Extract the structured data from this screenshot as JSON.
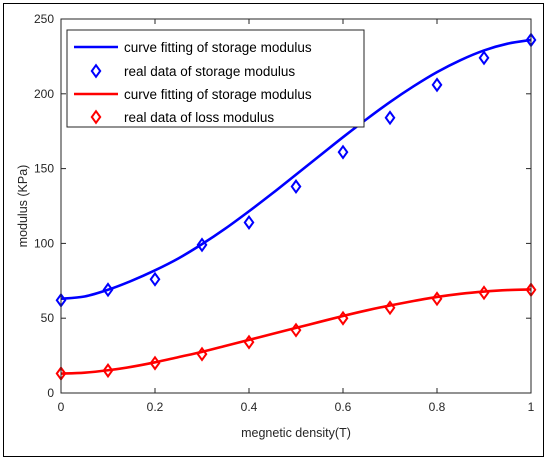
{
  "chart_data": {
    "type": "line",
    "title": "",
    "xlabel": "megnetic density(T)",
    "ylabel": "modulus (KPa)",
    "xlim": [
      0,
      1
    ],
    "ylim": [
      0,
      250
    ],
    "xticks": [
      "0",
      "0.2",
      "0.4",
      "0.6",
      "0.8",
      "1"
    ],
    "yticks": [
      "0",
      "50",
      "100",
      "150",
      "200",
      "250"
    ],
    "grid": false,
    "legend_position": "top-left",
    "series": [
      {
        "name": "curve fitting of storage modulus",
        "kind": "line",
        "color": "#0000ff",
        "x": [
          0,
          0.05,
          0.1,
          0.15,
          0.2,
          0.25,
          0.3,
          0.35,
          0.4,
          0.45,
          0.5,
          0.55,
          0.6,
          0.65,
          0.7,
          0.75,
          0.8,
          0.85,
          0.9,
          0.95,
          1.0
        ],
        "y": [
          63,
          64.5,
          69,
          75,
          82,
          90,
          99.5,
          110,
          121.5,
          133.5,
          146,
          158.5,
          171,
          183,
          194.5,
          205,
          214.5,
          222.5,
          229,
          233.5,
          236
        ]
      },
      {
        "name": "real data of storage modulus",
        "kind": "markers",
        "marker": "diamond",
        "color": "#0000ff",
        "x": [
          0,
          0.1,
          0.2,
          0.3,
          0.4,
          0.5,
          0.6,
          0.7,
          0.8,
          0.9,
          1.0
        ],
        "y": [
          62,
          69,
          76,
          99,
          114,
          138,
          161,
          184,
          206,
          224,
          236
        ]
      },
      {
        "name": "curve fitting of storage modulus",
        "kind": "line",
        "color": "#ff0000",
        "x": [
          0,
          0.05,
          0.1,
          0.15,
          0.2,
          0.25,
          0.3,
          0.35,
          0.4,
          0.45,
          0.5,
          0.55,
          0.6,
          0.65,
          0.7,
          0.75,
          0.8,
          0.85,
          0.9,
          0.95,
          1.0
        ],
        "y": [
          13,
          13.6,
          15.2,
          17.5,
          20.5,
          24,
          27.5,
          31.5,
          35.5,
          39.5,
          43.5,
          47.5,
          51.5,
          55.2,
          58.5,
          61.5,
          64.2,
          66.3,
          67.8,
          68.8,
          69.2
        ]
      },
      {
        "name": "real data of loss modulus",
        "kind": "markers",
        "marker": "diamond",
        "color": "#ff0000",
        "x": [
          0,
          0.1,
          0.2,
          0.3,
          0.4,
          0.5,
          0.6,
          0.7,
          0.8,
          0.9,
          1.0
        ],
        "y": [
          13,
          15,
          20,
          26,
          34,
          42,
          50,
          57,
          63,
          67,
          69
        ]
      }
    ]
  }
}
